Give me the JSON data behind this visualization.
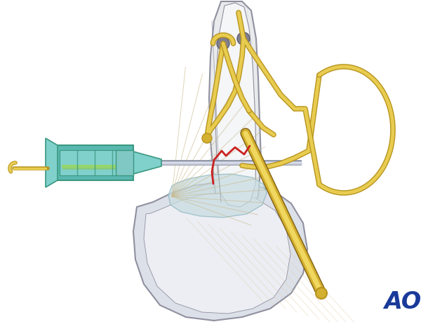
{
  "bg_color": "#ffffff",
  "gold_outer": "#b8941e",
  "gold_inner": "#e8cc50",
  "gold_mid": "#d4b030",
  "teal_body": "#5ab8b0",
  "teal_light": "#80d0cc",
  "teal_dark": "#3a9880",
  "teal_line": "#2a8878",
  "needle_color": "#c8ccd8",
  "needle_light": "#e0e4f0",
  "bone_fill": "#e8eaec",
  "bone_light": "#f4f6f8",
  "bone_edge": "#9090a0",
  "bone_inner": "#f0f2f5",
  "lower_fill": "#dce0e8",
  "lower_light": "#eceef4",
  "cart_fill": "#c8dce0",
  "cart_edge": "#90b8c0",
  "red_frac": "#cc2020",
  "ao_color": "#1a3a9a",
  "gray_hole": "#909090",
  "tendon_color": "#c8b888",
  "tendon_light": "#e0d0a8",
  "figsize": [
    6.2,
    4.59
  ],
  "dpi": 100
}
